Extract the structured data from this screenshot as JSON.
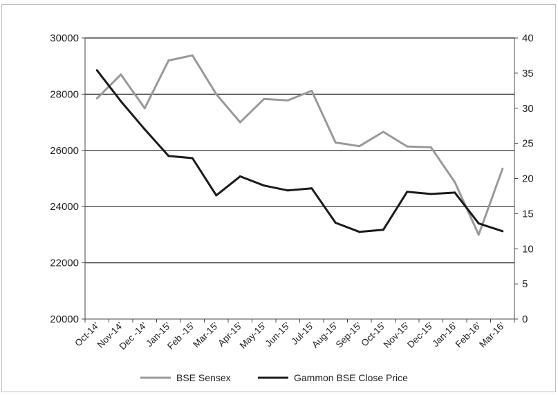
{
  "chart_data": {
    "type": "line",
    "title": "",
    "categories": [
      "Oct-14'",
      "Nov-14'",
      "Dec -14'",
      "Jan-15'",
      "Feb -15'",
      "Mar-15'",
      "Apr-15'",
      "May-15'",
      "Jun-15'",
      "Jul-15'",
      "Aug-15'",
      "Sep-15'",
      "Oct-15'",
      "Nov-15'",
      "Dec-15'",
      "Jan-16'",
      "Feb-16'",
      "Mar-16'"
    ],
    "series": [
      {
        "name": "BSE Sensex",
        "axis": "left",
        "color": "#999999",
        "values": [
          27850,
          28700,
          27500,
          29200,
          29380,
          28000,
          27000,
          27830,
          27780,
          28120,
          26280,
          26150,
          26660,
          26140,
          26110,
          24870,
          23000,
          25350
        ]
      },
      {
        "name": "Gammon BSE Close Price",
        "axis": "right",
        "color": "#1a1a1a",
        "values": [
          35.4,
          31.0,
          27.0,
          23.2,
          22.9,
          17.6,
          20.3,
          19.0,
          18.3,
          18.6,
          13.7,
          12.4,
          12.7,
          18.1,
          17.8,
          18.0,
          13.6,
          12.5
        ]
      }
    ],
    "y_left": {
      "min": 20000,
      "max": 30000,
      "step": 2000,
      "ticks": [
        "20000",
        "22000",
        "24000",
        "26000",
        "28000",
        "30000"
      ]
    },
    "y_right": {
      "min": 0,
      "max": 40,
      "step": 5,
      "ticks": [
        "0",
        "5",
        "10",
        "15",
        "20",
        "25",
        "30",
        "35",
        "40"
      ]
    },
    "grid": "horizontal",
    "legend_position": "bottom",
    "xlabel": "",
    "ylabel": ""
  }
}
